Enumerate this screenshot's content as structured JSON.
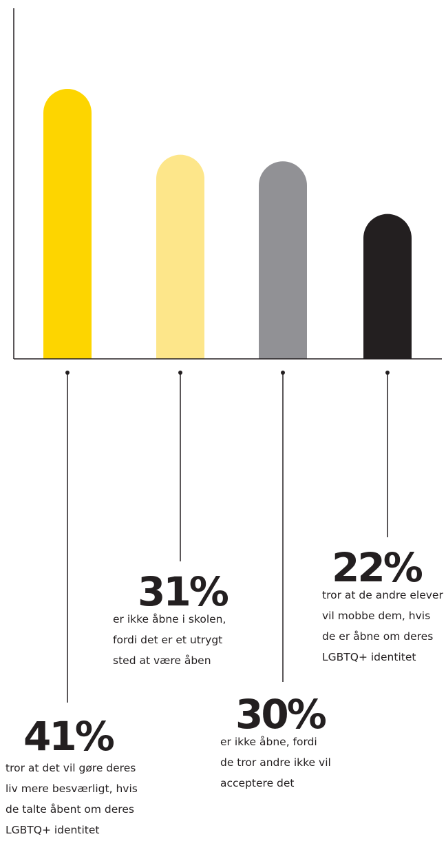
{
  "chart_data": {
    "type": "bar",
    "colors": [
      "#fdd500",
      "#fde68a",
      "#919195",
      "#231f20"
    ],
    "callouts": [
      {
        "value": 41,
        "value_label": "41%",
        "description_lines": [
          "tror at det vil gøre deres",
          "liv mere besværligt, hvis",
          "de talte åbent om deres",
          "LGBTQ+ identitet"
        ]
      },
      {
        "value": 31,
        "value_label": "31%",
        "description_lines": [
          "er ikke åbne i skolen,",
          "fordi det er et utrygt",
          "sted at være åben"
        ]
      },
      {
        "value": 30,
        "value_label": "30%",
        "description_lines": [
          "er ikke åbne, fordi",
          "de tror andre ikke vil",
          "acceptere det"
        ]
      },
      {
        "value": 22,
        "value_label": "22%",
        "description_lines": [
          "tror at de andre elever",
          "vil mobbe dem, hvis",
          "de er åbne om deres",
          "LGBTQ+ identitet"
        ]
      }
    ],
    "grid": false,
    "axis_color": "#231f20"
  }
}
